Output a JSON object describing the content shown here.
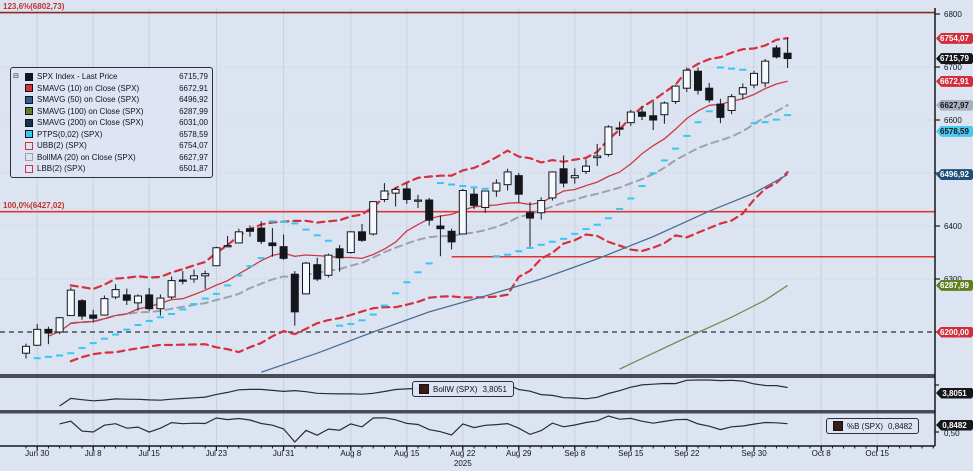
{
  "meta": {
    "terminal_style": "price-chart",
    "security": "SPX Index",
    "year": "2025"
  },
  "colors": {
    "background": "#dde4f1",
    "grid": "#c7cfdf",
    "axis": "#10141c",
    "up_candle": "#f5f8fc",
    "down_candle": "#14161c",
    "sma10": "#cc3a47",
    "sma50": "#4a6f96",
    "sma100": "#6f8f54",
    "sma200": "#17344f",
    "ptps": "#35c8f2",
    "boll_band": "#d6303e",
    "boll_ma": "#9aa2b0",
    "fib_line": "#8a2a22",
    "alert_line": "#e03434",
    "badge_last": "#14161c",
    "badge_red": "#d22d3a",
    "badge_gray": "#aab0bb",
    "badge_cyan": "#4ac8f0",
    "badge_navy": "#1f4e79",
    "badge_green": "#5f7d21",
    "subpanel_line": "#262c3a"
  },
  "legend": {
    "rows": [
      {
        "name": "spx-last-price",
        "label": "SPX Index - Last Price",
        "value": "6715,79",
        "chip": "#14161c",
        "outline": false
      },
      {
        "name": "smavg-10",
        "label": "SMAVG (10)  on Close (SPX)",
        "value": "6672,91",
        "chip": "#d6303e",
        "outline": false
      },
      {
        "name": "smavg-50",
        "label": "SMAVG (50)  on Close (SPX)",
        "value": "6496,92",
        "chip": "#2f5e8f",
        "outline": false
      },
      {
        "name": "smavg-100",
        "label": "SMAVG (100)  on Close (SPX)",
        "value": "6287,99",
        "chip": "#5f7d21",
        "outline": false
      },
      {
        "name": "smavg-200",
        "label": "SMAVG (200)  on Close (SPX)",
        "value": "6031,00",
        "chip": "#17344f",
        "outline": false
      },
      {
        "name": "ptps",
        "label": "PTPS(0,02)  (SPX)",
        "value": "6578,59",
        "chip": "#35c8f2",
        "outline": false
      },
      {
        "name": "ubb",
        "label": "UBB(2)  (SPX)",
        "value": "6754,07",
        "chip": "#d6303e",
        "outline": true
      },
      {
        "name": "bollma",
        "label": "BollMA (20)  on Close (SPX)",
        "value": "6627,97",
        "chip": "#9aa2b0",
        "outline": true
      },
      {
        "name": "lbb",
        "label": "LBB(2)  (SPX)",
        "value": "6501,87",
        "chip": "#d6303e",
        "outline": true
      }
    ]
  },
  "annotations": {
    "fib_labels": [
      {
        "text": "123,6%(6802,73)",
        "price": 6802.73
      },
      {
        "text": "100,0%(6427,02)",
        "price": 6427.02
      }
    ]
  },
  "panels": {
    "bollw": {
      "label": "BollW (SPX)",
      "value": "3,8051",
      "badge": "3,8051"
    },
    "pctb": {
      "label": "%B (SPX)",
      "value": "0,8482",
      "badge": "0,8482",
      "mid_tick": "0,50"
    }
  },
  "axis": {
    "price_ticks": [
      {
        "label": "6800",
        "price": 6800
      },
      {
        "label": "6700",
        "price": 6700
      },
      {
        "label": "6600",
        "price": 6600
      },
      {
        "label": "6400",
        "price": 6400
      },
      {
        "label": "6300",
        "price": 6300
      }
    ],
    "badges": [
      {
        "name": "ubb-badge",
        "text": "6754,07",
        "price": 6754.07,
        "bg": "#d22d3a",
        "fg": "#ffffff"
      },
      {
        "name": "last-badge",
        "text": "6715,79",
        "price": 6715.79,
        "bg": "#14161c",
        "fg": "#ffffff"
      },
      {
        "name": "sma10-badge",
        "text": "6672,91",
        "price": 6672.91,
        "bg": "#d22d3a",
        "fg": "#ffffff"
      },
      {
        "name": "bollma-badge",
        "text": "6627,97",
        "price": 6627.97,
        "bg": "#aab0bb",
        "fg": "#14161c"
      },
      {
        "name": "ptps-badge",
        "text": "6578,59",
        "price": 6578.59,
        "bg": "#4ac8f0",
        "fg": "#14161c"
      },
      {
        "name": "sma50-badge",
        "text": "6496,92",
        "price": 6496.92,
        "bg": "#1f4e79",
        "fg": "#ffffff"
      },
      {
        "name": "sma100-badge",
        "text": "6287,99",
        "price": 6287.99,
        "bg": "#5f7d21",
        "fg": "#ffffff"
      },
      {
        "name": "alert-badge",
        "text": "6200,00",
        "price": 6200.0,
        "bg": "#d22d3a",
        "fg": "#ffffff"
      },
      {
        "name": "bollw-badge",
        "text": "3,8051",
        "y": 393,
        "bg": "#14161c",
        "fg": "#ffffff"
      },
      {
        "name": "pctb-badge",
        "text": "0,8482",
        "y": 425,
        "bg": "#14161c",
        "fg": "#ffffff"
      }
    ],
    "date_ticks": [
      {
        "label": "Jun 30",
        "i": 1
      },
      {
        "label": "Jul 8",
        "i": 6
      },
      {
        "label": "Jul 15",
        "i": 11
      },
      {
        "label": "Jul 23",
        "i": 17
      },
      {
        "label": "Jul 31",
        "i": 23
      },
      {
        "label": "Aug 8",
        "i": 29
      },
      {
        "label": "Aug 15",
        "i": 34
      },
      {
        "label": "Aug 22",
        "i": 39
      },
      {
        "label": "Aug 29",
        "i": 44
      },
      {
        "label": "Sep 8",
        "i": 49
      },
      {
        "label": "Sep 15",
        "i": 54
      },
      {
        "label": "Sep 22",
        "i": 59
      },
      {
        "label": "Sep 30",
        "i": 65
      },
      {
        "label": "Oct 8",
        "i": 71
      },
      {
        "label": "Oct 15",
        "i": 76
      }
    ],
    "year": "2025"
  },
  "chart_data": {
    "type": "candlestick",
    "symbol": "SPX Index",
    "last_price": 6715.79,
    "ylim": [
      6120,
      6810
    ],
    "x_range_labels": [
      "Jun 30",
      "Oct 15"
    ],
    "candles": [
      [
        6160,
        6178,
        6150,
        6173
      ],
      [
        6175,
        6215,
        6174,
        6205
      ],
      [
        6205,
        6210,
        6177,
        6198
      ],
      [
        6200,
        6228,
        6196,
        6227
      ],
      [
        6231,
        6284,
        6231,
        6279
      ],
      [
        6259,
        6262,
        6223,
        6230
      ],
      [
        6232,
        6242,
        6218,
        6226
      ],
      [
        6232,
        6269,
        6231,
        6263
      ],
      [
        6266,
        6290,
        6262,
        6280
      ],
      [
        6270,
        6282,
        6251,
        6260
      ],
      [
        6255,
        6271,
        6240,
        6268
      ],
      [
        6270,
        6283,
        6240,
        6244
      ],
      [
        6244,
        6271,
        6231,
        6264
      ],
      [
        6266,
        6305,
        6262,
        6297
      ],
      [
        6298,
        6315,
        6290,
        6297
      ],
      [
        6300,
        6318,
        6293,
        6306
      ],
      [
        6306,
        6316,
        6281,
        6310
      ],
      [
        6325,
        6361,
        6325,
        6359
      ],
      [
        6362,
        6381,
        6360,
        6363
      ],
      [
        6368,
        6395,
        6368,
        6389
      ],
      [
        6395,
        6401,
        6380,
        6390
      ],
      [
        6396,
        6409,
        6366,
        6371
      ],
      [
        6368,
        6396,
        6342,
        6363
      ],
      [
        6361,
        6384,
        6336,
        6339
      ],
      [
        6309,
        6315,
        6212,
        6238
      ],
      [
        6272,
        6332,
        6271,
        6330
      ],
      [
        6327,
        6340,
        6296,
        6300
      ],
      [
        6307,
        6348,
        6303,
        6345
      ],
      [
        6357,
        6364,
        6314,
        6340
      ],
      [
        6350,
        6390,
        6348,
        6389
      ],
      [
        6389,
        6404,
        6370,
        6373
      ],
      [
        6385,
        6446,
        6382,
        6446
      ],
      [
        6450,
        6481,
        6445,
        6466
      ],
      [
        6462,
        6473,
        6437,
        6469
      ],
      [
        6470,
        6481,
        6442,
        6450
      ],
      [
        6449,
        6459,
        6434,
        6449
      ],
      [
        6449,
        6453,
        6401,
        6411
      ],
      [
        6400,
        6420,
        6343,
        6395
      ],
      [
        6390,
        6395,
        6356,
        6370
      ],
      [
        6385,
        6470,
        6385,
        6467
      ],
      [
        6460,
        6471,
        6432,
        6439
      ],
      [
        6435,
        6467,
        6425,
        6466
      ],
      [
        6466,
        6488,
        6455,
        6481
      ],
      [
        6478,
        6508,
        6467,
        6502
      ],
      [
        6495,
        6500,
        6444,
        6460
      ],
      [
        6425,
        6445,
        6361,
        6415
      ],
      [
        6425,
        6454,
        6412,
        6448
      ],
      [
        6453,
        6503,
        6448,
        6502
      ],
      [
        6508,
        6533,
        6473,
        6481
      ],
      [
        6491,
        6509,
        6480,
        6495
      ],
      [
        6503,
        6526,
        6498,
        6513
      ],
      [
        6529,
        6555,
        6513,
        6532
      ],
      [
        6535,
        6590,
        6531,
        6587
      ],
      [
        6585,
        6597,
        6570,
        6584
      ],
      [
        6595,
        6619,
        6589,
        6615
      ],
      [
        6615,
        6626,
        6600,
        6607
      ],
      [
        6608,
        6634,
        6581,
        6600
      ],
      [
        6610,
        6635,
        6593,
        6632
      ],
      [
        6635,
        6666,
        6630,
        6664
      ],
      [
        6660,
        6699,
        6653,
        6694
      ],
      [
        6692,
        6699,
        6648,
        6656
      ],
      [
        6660,
        6670,
        6633,
        6638
      ],
      [
        6630,
        6640,
        6594,
        6605
      ],
      [
        6618,
        6649,
        6611,
        6644
      ],
      [
        6649,
        6669,
        6639,
        6661
      ],
      [
        6666,
        6693,
        6660,
        6688
      ],
      [
        6670,
        6715,
        6662,
        6711
      ],
      [
        6736,
        6741,
        6716,
        6719
      ],
      [
        6726,
        6755,
        6698,
        6716
      ]
    ],
    "overlays": [
      {
        "name": "SMAVG(10)",
        "type": "sma",
        "window": 10,
        "style": "solid",
        "color": "#cc3a47",
        "last": 6672.91
      },
      {
        "name": "SMAVG(50)",
        "type": "polyline",
        "color": "#4a6f96",
        "last": 6496.92,
        "points": [
          [
            21,
            6124
          ],
          [
            26,
            6160
          ],
          [
            31,
            6200
          ],
          [
            36,
            6238
          ],
          [
            41,
            6268
          ],
          [
            46,
            6300
          ],
          [
            51,
            6338
          ],
          [
            56,
            6380
          ],
          [
            61,
            6428
          ],
          [
            65,
            6462
          ],
          [
            68,
            6497
          ]
        ]
      },
      {
        "name": "SMAVG(100)",
        "type": "polyline",
        "color": "#6f8f54",
        "last": 6287.99,
        "points": [
          [
            53,
            6130
          ],
          [
            58,
            6180
          ],
          [
            63,
            6228
          ],
          [
            66,
            6260
          ],
          [
            68,
            6288
          ]
        ]
      },
      {
        "name": "SMAVG(200)",
        "type": "offscreen",
        "color": "#17344f",
        "last": 6031.0
      },
      {
        "name": "PTPS(0,02)",
        "type": "psar",
        "af": 0.02,
        "af_max": 0.2,
        "color": "#35c8f2",
        "last": 6578.59
      },
      {
        "name": "UBB(2)",
        "type": "boll_upper",
        "window": 20,
        "mult": 2,
        "style": "dashed",
        "color": "#d6303e",
        "last": 6754.07
      },
      {
        "name": "BollMA(20)",
        "type": "sma",
        "window": 20,
        "style": "dashed",
        "color": "#9aa2b0",
        "last": 6627.97
      },
      {
        "name": "LBB(2)",
        "type": "boll_lower",
        "window": 20,
        "mult": 2,
        "style": "dashed",
        "color": "#d6303e",
        "last": 6501.87
      }
    ],
    "hlines": [
      {
        "label": "123,6%(6802,73)",
        "value": 6802.73,
        "style": "solid",
        "color": "#8a2a22",
        "from_index": 0
      },
      {
        "label": "100,0%(6427,02)",
        "value": 6427.02,
        "style": "solid",
        "color": "#e03434",
        "from_index": 0
      },
      {
        "label": "",
        "value": 6342.0,
        "style": "solid",
        "color": "#e03434",
        "from_index": 38
      },
      {
        "label": "6200,00",
        "value": 6200.0,
        "style": "dashed",
        "color": "#2a2d33",
        "from_index": 0
      }
    ],
    "sub_panels": [
      {
        "name": "BollW",
        "type": "line",
        "derived": "bollinger_width_pct",
        "last": 3.8051
      },
      {
        "name": "%B",
        "type": "line",
        "derived": "percent_b",
        "last": 0.8482
      }
    ]
  }
}
